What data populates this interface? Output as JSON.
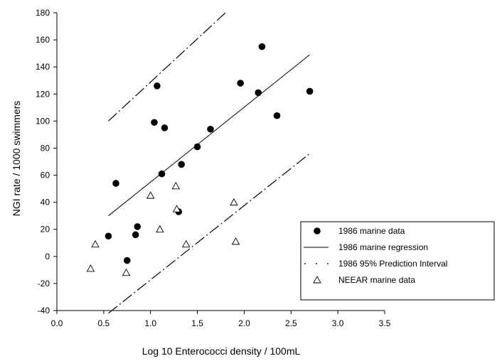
{
  "chart_data": {
    "type": "scatter",
    "title": "",
    "xlabel": "Log 10 Enterococci density / 100mL",
    "ylabel": "NGI rate / 1000 swimmers",
    "xlim": [
      0.0,
      3.5
    ],
    "ylim": [
      -40,
      180
    ],
    "x_ticks": [
      "0.0",
      "0.5",
      "1.0",
      "1.5",
      "2.0",
      "2.5",
      "3.0",
      "3.5"
    ],
    "y_ticks": [
      "-40",
      "-20",
      "0",
      "20",
      "40",
      "60",
      "80",
      "100",
      "120",
      "140",
      "160",
      "180"
    ],
    "grid": false,
    "legend_position": "bottom-right",
    "series": [
      {
        "name": "1986 marine data",
        "kind": "scatter",
        "marker": "filled-circle",
        "points": [
          [
            0.55,
            15
          ],
          [
            0.63,
            54
          ],
          [
            0.75,
            -3
          ],
          [
            0.84,
            16
          ],
          [
            0.86,
            22
          ],
          [
            1.04,
            99
          ],
          [
            1.07,
            126
          ],
          [
            1.12,
            61
          ],
          [
            1.15,
            95
          ],
          [
            1.3,
            33
          ],
          [
            1.33,
            68
          ],
          [
            1.5,
            81
          ],
          [
            1.64,
            94
          ],
          [
            1.96,
            128
          ],
          [
            2.15,
            121
          ],
          [
            2.19,
            155
          ],
          [
            2.35,
            104
          ],
          [
            2.7,
            122
          ]
        ]
      },
      {
        "name": "1986 marine regression",
        "kind": "line",
        "style": "solid",
        "points": [
          [
            0.55,
            30
          ],
          [
            2.7,
            149
          ]
        ]
      },
      {
        "name": "1986 95% Prediction Interval",
        "kind": "line",
        "style": "dash-dot",
        "bands": [
          [
            [
              0.55,
              100
            ],
            [
              1.8,
              180
            ]
          ],
          [
            [
              0.55,
              -42
            ],
            [
              2.7,
              76
            ]
          ]
        ]
      },
      {
        "name": "NEEAR marine data",
        "kind": "scatter",
        "marker": "open-triangle",
        "points": [
          [
            0.36,
            -9
          ],
          [
            0.41,
            9
          ],
          [
            0.74,
            -12
          ],
          [
            1.0,
            45
          ],
          [
            1.1,
            20
          ],
          [
            1.27,
            52
          ],
          [
            1.28,
            35
          ],
          [
            1.38,
            9
          ],
          [
            1.89,
            40
          ],
          [
            1.91,
            11
          ]
        ]
      }
    ]
  },
  "legend": {
    "items": [
      {
        "label": "1986 marine data",
        "symbol": "filled-circle"
      },
      {
        "label": "1986 marine regression",
        "symbol": "solid-line"
      },
      {
        "label": "1986 95% Prediction Interval",
        "symbol": "dash-dot-line"
      },
      {
        "label": "NEEAR marine data",
        "symbol": "open-triangle"
      }
    ]
  }
}
